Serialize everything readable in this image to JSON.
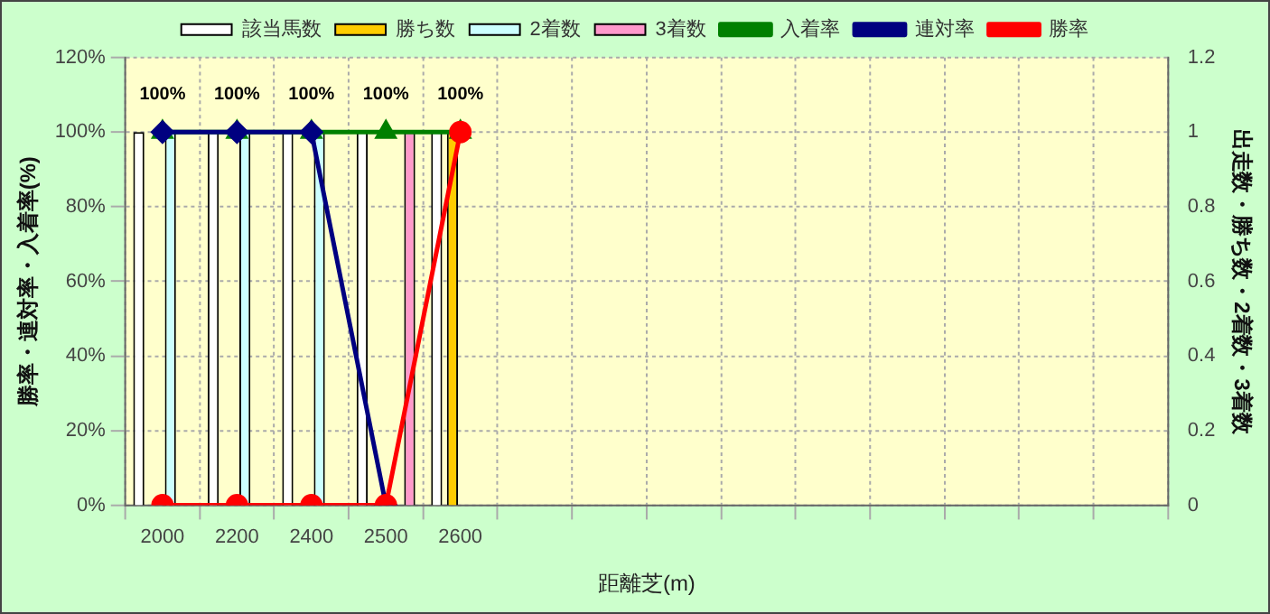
{
  "chart_data": {
    "type": "bar",
    "xlabel": "距離芝(m)",
    "ylabel": "勝率・連対率・入着率(%)",
    "y2label": "出走数・勝ち数・2着数・3着数",
    "categories": [
      "2000",
      "2200",
      "2400",
      "2500",
      "2600",
      null,
      null,
      null,
      null,
      null,
      null,
      null,
      null,
      null
    ],
    "series": [
      {
        "name": "該当馬数",
        "axis": "y2",
        "color": "#ffffff",
        "values": [
          1,
          1,
          1,
          1,
          1,
          null,
          null,
          null,
          null,
          null,
          null,
          null,
          null,
          null
        ]
      },
      {
        "name": "勝ち数",
        "axis": "y2",
        "color": "#ffcc00",
        "values": [
          0,
          0,
          0,
          0,
          1,
          null,
          null,
          null,
          null,
          null,
          null,
          null,
          null,
          null
        ]
      },
      {
        "name": "2着数",
        "axis": "y2",
        "color": "#ccffff",
        "values": [
          1,
          1,
          1,
          0,
          0,
          null,
          null,
          null,
          null,
          null,
          null,
          null,
          null,
          null
        ]
      },
      {
        "name": "3着数",
        "axis": "y2",
        "color": "#ff99cc",
        "values": [
          0,
          0,
          0,
          1,
          0,
          null,
          null,
          null,
          null,
          null,
          null,
          null,
          null,
          null
        ]
      },
      {
        "name": "入着率",
        "type": "line",
        "marker": "triangle",
        "color": "#008000",
        "values": [
          100,
          100,
          100,
          100,
          100,
          null,
          null,
          null,
          null,
          null,
          null,
          null,
          null,
          null
        ],
        "value_labels": [
          "100%",
          "100%",
          "100%",
          "100%",
          "100%",
          null,
          null,
          null,
          null,
          null,
          null,
          null,
          null,
          null
        ]
      },
      {
        "name": "連対率",
        "type": "line",
        "marker": "diamond",
        "color": "#000080",
        "values": [
          100,
          100,
          100,
          0,
          null,
          null,
          null,
          null,
          null,
          null,
          null,
          null,
          null,
          null
        ]
      },
      {
        "name": "勝率",
        "type": "line",
        "marker": "circle",
        "color": "#ff0000",
        "values": [
          0,
          0,
          0,
          0,
          100,
          null,
          null,
          null,
          null,
          null,
          null,
          null,
          null,
          null
        ]
      }
    ],
    "ylim": [
      0,
      120
    ],
    "yticks": [
      {
        "value": 0,
        "label": "0%"
      },
      {
        "value": 20,
        "label": "20%"
      },
      {
        "value": 40,
        "label": "40%"
      },
      {
        "value": 60,
        "label": "60%"
      },
      {
        "value": 80,
        "label": "80%"
      },
      {
        "value": 100,
        "label": "100%"
      },
      {
        "value": 120,
        "label": "120%"
      }
    ],
    "y2lim": [
      0,
      1.2
    ],
    "y2ticks": [
      0,
      0.2,
      0.4,
      0.6,
      0.8,
      1,
      1.2
    ],
    "grid": true,
    "legend": "top",
    "line_style": "solid"
  }
}
